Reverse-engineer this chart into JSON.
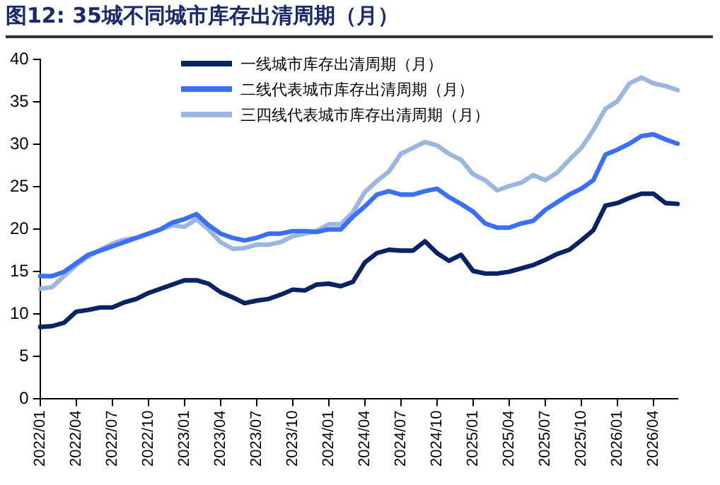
{
  "chart_data": {
    "type": "line",
    "title": "图12:  35城不同城市库存出清周期（月）",
    "categories": [
      "2022/01",
      null,
      null,
      "2022/04",
      null,
      null,
      "2022/07",
      null,
      null,
      "2022/10",
      null,
      null,
      "2023/01",
      null,
      null,
      "2023/04",
      null,
      null,
      "2023/07",
      null,
      null,
      "2023/10",
      null,
      null,
      "2024/01",
      null,
      null,
      "2024/04",
      null,
      null,
      "2024/07",
      null,
      null,
      "2024/10",
      null,
      null,
      "2025/01",
      null,
      null,
      "2025/04",
      null,
      null,
      "2025/07",
      null,
      null,
      "2025/10",
      null,
      null,
      "2026/01",
      null,
      null,
      "2026/04",
      null,
      null
    ],
    "series": [
      {
        "name": "一线城市库存出清周期（月）",
        "color": "#0b2265",
        "values": [
          8.5,
          8.6,
          9,
          10.3,
          10.5,
          10.8,
          10.8,
          11.4,
          11.8,
          12.5,
          13,
          13.5,
          14,
          14,
          13.6,
          12.6,
          12,
          11.3,
          11.6,
          11.8,
          12.3,
          12.9,
          12.8,
          13.5,
          13.6,
          13.3,
          13.8,
          16.1,
          17.2,
          17.6,
          17.5,
          17.5,
          18.6,
          17.2,
          16.3,
          17,
          15.1,
          14.8,
          14.8,
          15,
          15.4,
          15.8,
          16.4,
          17.1,
          17.6,
          18.7,
          19.9,
          22.8,
          23.1,
          23.7,
          24.2,
          24.2,
          23.1,
          23
        ]
      },
      {
        "name": "二线代表城市库存出清周期（月）",
        "color": "#3a6ff7",
        "values": [
          14.5,
          14.5,
          15,
          16,
          17,
          17.5,
          18,
          18.5,
          19,
          19.5,
          20,
          20.8,
          21.2,
          21.8,
          20.5,
          19.5,
          19,
          18.7,
          19,
          19.5,
          19.5,
          19.8,
          19.8,
          19.7,
          20,
          20,
          21.5,
          22.7,
          24.1,
          24.5,
          24.1,
          24.1,
          24.5,
          24.8,
          23.8,
          23,
          22.1,
          20.7,
          20.2,
          20.2,
          20.7,
          21,
          22.3,
          23.2,
          24.1,
          24.8,
          25.8,
          28.8,
          29.4,
          30.1,
          31,
          31.2,
          30.6,
          30.1
        ]
      },
      {
        "name": "三四线代表城市库存出清周期（月）",
        "color": "#9db6e0",
        "values": [
          13,
          13.2,
          14.5,
          15.8,
          16.8,
          17.6,
          18.3,
          18.8,
          19,
          19.5,
          20,
          20.5,
          20.3,
          21.2,
          20,
          18.5,
          17.7,
          17.8,
          18.2,
          18.2,
          18.5,
          19.2,
          19.5,
          19.8,
          20.6,
          20.6,
          22,
          24.4,
          25.7,
          26.8,
          28.9,
          29.6,
          30.3,
          29.9,
          28.9,
          28.2,
          26.5,
          25.8,
          24.6,
          25.1,
          25.5,
          26.4,
          25.8,
          26.7,
          28.2,
          29.6,
          31.7,
          34.2,
          35.1,
          37.2,
          37.9,
          37.2,
          36.9,
          36.4
        ]
      }
    ],
    "ylim": [
      0,
      40
    ],
    "yticks": [
      0,
      5,
      10,
      15,
      20,
      25,
      30,
      35,
      40
    ],
    "grid": false,
    "legend": "top",
    "marker": "none",
    "line_style": "solid"
  }
}
